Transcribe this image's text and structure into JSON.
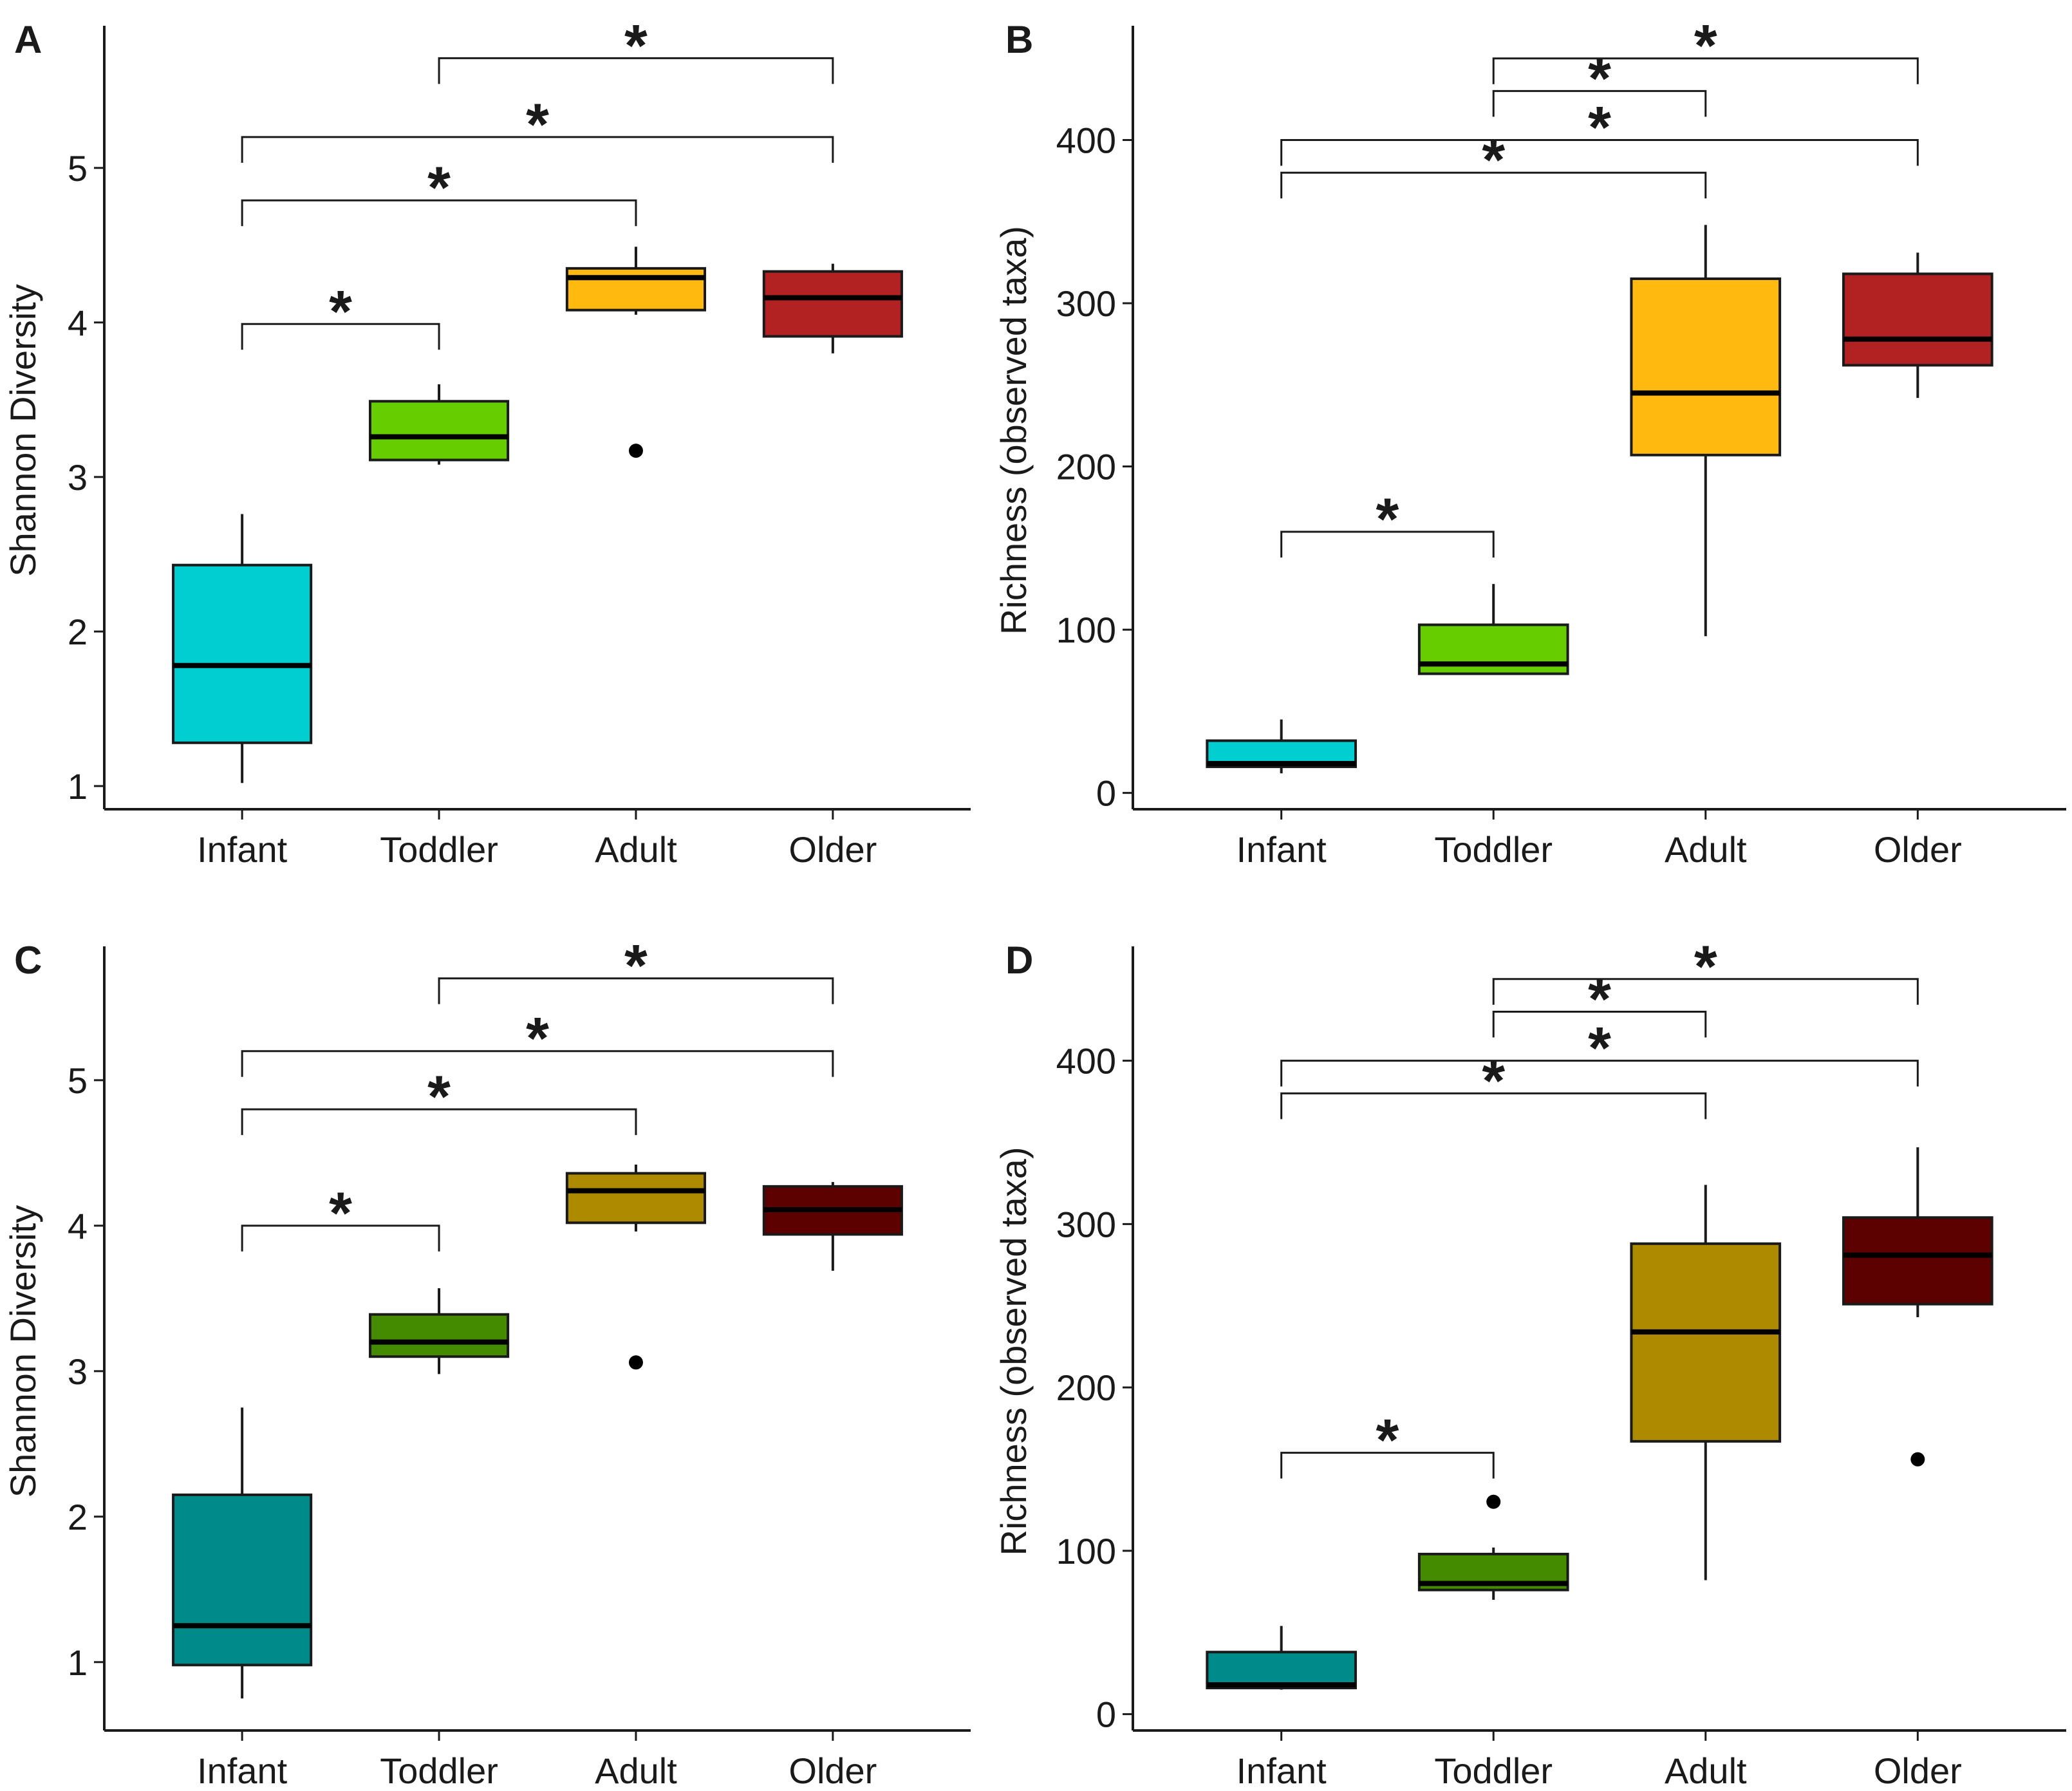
{
  "figure": {
    "colors": {
      "infant": "#00CED1",
      "toddler": "#66CD00",
      "adult": "#FFB90F",
      "older": "#B22222",
      "infant_dark": "#008B8B",
      "toddler_dark": "#458B00",
      "adult_dark": "#AD8A00",
      "older_dark": "#5C0000"
    }
  },
  "chart_data": [
    {
      "panel": "A",
      "type": "boxplot",
      "ylabel": "Shannon Diversity",
      "xlabel": "",
      "categories": [
        "Infant",
        "Toddler",
        "Adult",
        "Older"
      ],
      "ylim": [
        0.85,
        5.92
      ],
      "yticks": [
        1,
        2,
        3,
        4,
        5
      ],
      "grid": false,
      "colors": [
        "#00CED1",
        "#66CD00",
        "#FFB90F",
        "#B22222"
      ],
      "boxes": [
        {
          "q1": 1.28,
          "median": 1.78,
          "q3": 2.43,
          "whisker_low": 1.02,
          "whisker_high": 2.76,
          "outliers": []
        },
        {
          "q1": 3.11,
          "median": 3.26,
          "q3": 3.49,
          "whisker_low": 3.08,
          "whisker_high": 3.6,
          "outliers": []
        },
        {
          "q1": 4.08,
          "median": 4.29,
          "q3": 4.35,
          "whisker_low": 4.05,
          "whisker_high": 4.49,
          "outliers": [
            3.17
          ]
        },
        {
          "q1": 3.91,
          "median": 4.16,
          "q3": 4.33,
          "whisker_low": 3.8,
          "whisker_high": 4.38,
          "outliers": []
        }
      ],
      "brackets": [
        {
          "from": "Infant",
          "to": "Toddler",
          "y": 3.99,
          "label": "*"
        },
        {
          "from": "Infant",
          "to": "Adult",
          "y": 4.79,
          "label": "*"
        },
        {
          "from": "Infant",
          "to": "Older",
          "y": 5.2,
          "label": "*"
        },
        {
          "from": "Toddler",
          "to": "Older",
          "y": 5.71,
          "label": "*"
        }
      ]
    },
    {
      "panel": "B",
      "type": "boxplot",
      "ylabel": "Richness (observed taxa)",
      "xlabel": "",
      "categories": [
        "Infant",
        "Toddler",
        "Adult",
        "Older"
      ],
      "ylim": [
        -10,
        470
      ],
      "yticks": [
        0,
        100,
        200,
        300,
        400
      ],
      "grid": false,
      "colors": [
        "#00CED1",
        "#66CD00",
        "#FFB90F",
        "#B22222"
      ],
      "boxes": [
        {
          "q1": 16,
          "median": 18,
          "q3": 32,
          "whisker_low": 12,
          "whisker_high": 45,
          "outliers": []
        },
        {
          "q1": 73,
          "median": 79,
          "q3": 103,
          "whisker_low": 73,
          "whisker_high": 128,
          "outliers": []
        },
        {
          "q1": 207,
          "median": 245,
          "q3": 315,
          "whisker_low": 96,
          "whisker_high": 348,
          "outliers": []
        },
        {
          "q1": 262,
          "median": 278,
          "q3": 318,
          "whisker_low": 242,
          "whisker_high": 331,
          "outliers": []
        }
      ],
      "brackets": [
        {
          "from": "Infant",
          "to": "Toddler",
          "y": 160,
          "label": "*"
        },
        {
          "from": "Infant",
          "to": "Adult",
          "y": 380,
          "label": "*"
        },
        {
          "from": "Infant",
          "to": "Older",
          "y": 400,
          "label": "*"
        },
        {
          "from": "Toddler",
          "to": "Adult",
          "y": 430,
          "label": "*"
        },
        {
          "from": "Toddler",
          "to": "Older",
          "y": 450,
          "label": "*"
        }
      ]
    },
    {
      "panel": "C",
      "type": "boxplot",
      "ylabel": "Shannon Diversity",
      "xlabel": "",
      "categories": [
        "Infant",
        "Toddler",
        "Adult",
        "Older"
      ],
      "ylim": [
        0.53,
        5.92
      ],
      "yticks": [
        1,
        2,
        3,
        4,
        5
      ],
      "grid": false,
      "colors": [
        "#008B8B",
        "#458B00",
        "#AD8A00",
        "#5C0000"
      ],
      "boxes": [
        {
          "q1": 0.98,
          "median": 1.25,
          "q3": 2.15,
          "whisker_low": 0.75,
          "whisker_high": 2.75,
          "outliers": []
        },
        {
          "q1": 3.1,
          "median": 3.2,
          "q3": 3.39,
          "whisker_low": 2.98,
          "whisker_high": 3.57,
          "outliers": []
        },
        {
          "q1": 4.02,
          "median": 4.24,
          "q3": 4.36,
          "whisker_low": 3.96,
          "whisker_high": 4.42,
          "outliers": [
            3.06
          ]
        },
        {
          "q1": 3.94,
          "median": 4.11,
          "q3": 4.27,
          "whisker_low": 3.69,
          "whisker_high": 4.3,
          "outliers": []
        }
      ],
      "brackets": [
        {
          "from": "Infant",
          "to": "Toddler",
          "y": 4.0,
          "label": "*"
        },
        {
          "from": "Infant",
          "to": "Adult",
          "y": 4.8,
          "label": "*"
        },
        {
          "from": "Infant",
          "to": "Older",
          "y": 5.2,
          "label": "*"
        },
        {
          "from": "Toddler",
          "to": "Older",
          "y": 5.7,
          "label": "*"
        }
      ]
    },
    {
      "panel": "D",
      "type": "boxplot",
      "ylabel": "Richness (observed taxa)",
      "xlabel": "",
      "categories": [
        "Infant",
        "Toddler",
        "Adult",
        "Older"
      ],
      "ylim": [
        -10,
        470
      ],
      "yticks": [
        0,
        100,
        200,
        300,
        400
      ],
      "grid": false,
      "colors": [
        "#008B8B",
        "#458B00",
        "#AD8A00",
        "#5C0000"
      ],
      "boxes": [
        {
          "q1": 16,
          "median": 18,
          "q3": 38,
          "whisker_low": 15,
          "whisker_high": 54,
          "outliers": []
        },
        {
          "q1": 76,
          "median": 80,
          "q3": 98,
          "whisker_low": 70,
          "whisker_high": 102,
          "outliers": [
            130
          ]
        },
        {
          "q1": 167,
          "median": 234,
          "q3": 288,
          "whisker_low": 82,
          "whisker_high": 324,
          "outliers": []
        },
        {
          "q1": 251,
          "median": 281,
          "q3": 304,
          "whisker_low": 243,
          "whisker_high": 347,
          "outliers": [
            156
          ]
        }
      ],
      "brackets": [
        {
          "from": "Infant",
          "to": "Toddler",
          "y": 160,
          "label": "*"
        },
        {
          "from": "Infant",
          "to": "Adult",
          "y": 380,
          "label": "*"
        },
        {
          "from": "Infant",
          "to": "Older",
          "y": 400,
          "label": "*"
        },
        {
          "from": "Toddler",
          "to": "Adult",
          "y": 430,
          "label": "*"
        },
        {
          "from": "Toddler",
          "to": "Older",
          "y": 450,
          "label": "*"
        }
      ]
    }
  ]
}
